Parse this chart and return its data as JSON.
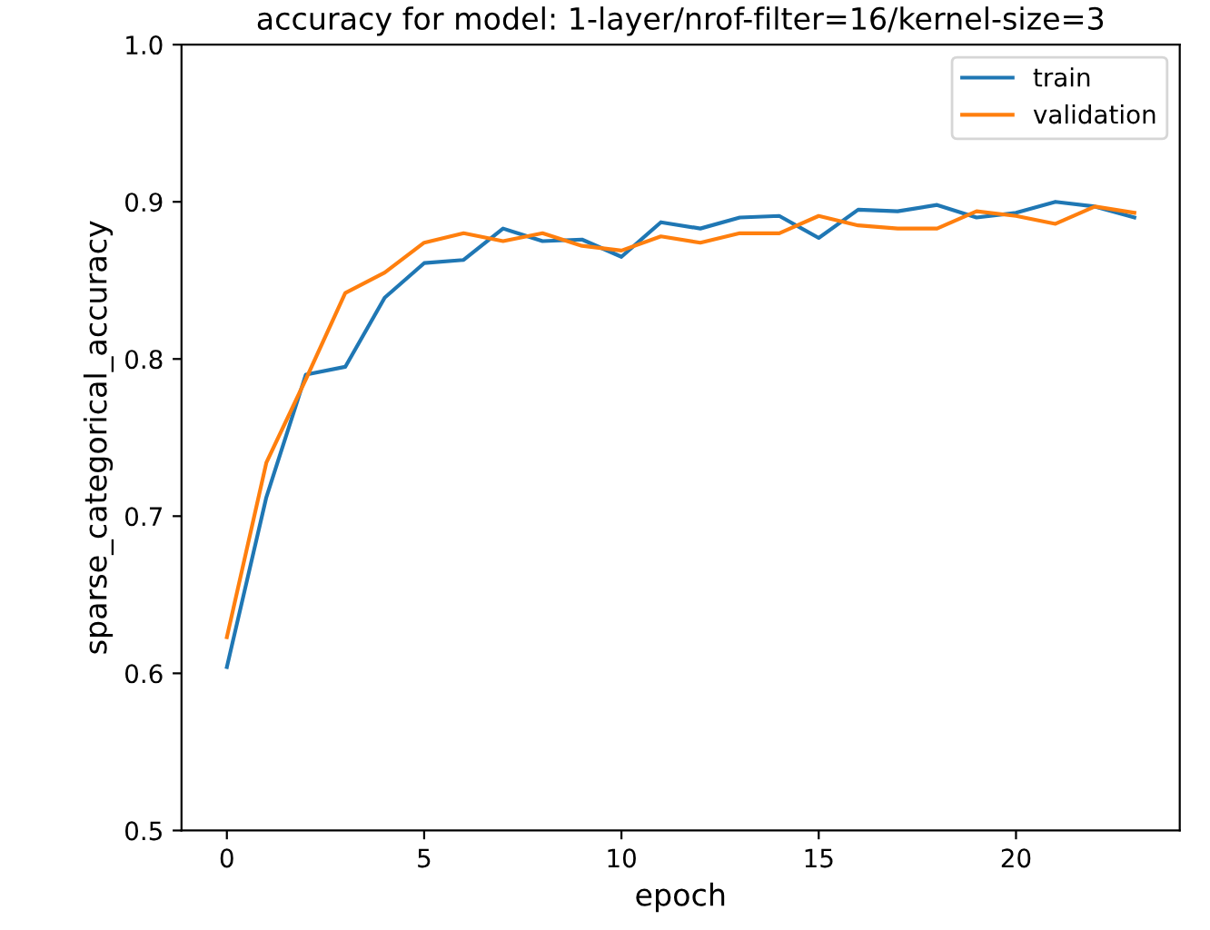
{
  "chart_data": {
    "type": "line",
    "title": "accuracy for model: 1-layer/nrof-filter=16/kernel-size=3",
    "xlabel": "epoch",
    "ylabel": "sparse_categorical_accuracy",
    "x": [
      0,
      1,
      2,
      3,
      4,
      5,
      6,
      7,
      8,
      9,
      10,
      11,
      12,
      13,
      14,
      15,
      16,
      17,
      18,
      19,
      20,
      21,
      22,
      23
    ],
    "series": [
      {
        "name": "train",
        "color": "#1f77b4",
        "values": [
          0.604,
          0.712,
          0.79,
          0.795,
          0.839,
          0.861,
          0.863,
          0.883,
          0.875,
          0.876,
          0.865,
          0.887,
          0.883,
          0.89,
          0.891,
          0.877,
          0.895,
          0.894,
          0.898,
          0.89,
          0.893,
          0.9,
          0.897,
          0.89
        ]
      },
      {
        "name": "validation",
        "color": "#ff7f0e",
        "values": [
          0.623,
          0.734,
          0.787,
          0.842,
          0.855,
          0.874,
          0.88,
          0.875,
          0.88,
          0.872,
          0.869,
          0.878,
          0.874,
          0.88,
          0.88,
          0.891,
          0.885,
          0.883,
          0.883,
          0.894,
          0.891,
          0.886,
          0.897,
          0.893
        ]
      }
    ],
    "xlim": [
      -1.15,
      24.15
    ],
    "xticks": [
      0,
      5,
      10,
      15,
      20
    ],
    "ylim": [
      0.5,
      1.0
    ],
    "yticks": [
      0.5,
      0.6,
      0.7,
      0.8,
      0.9,
      {
        "value": 1,
        "label": "1.0"
      }
    ],
    "legend": "top right",
    "grid": false,
    "marker": "none",
    "line_style": "solid"
  }
}
